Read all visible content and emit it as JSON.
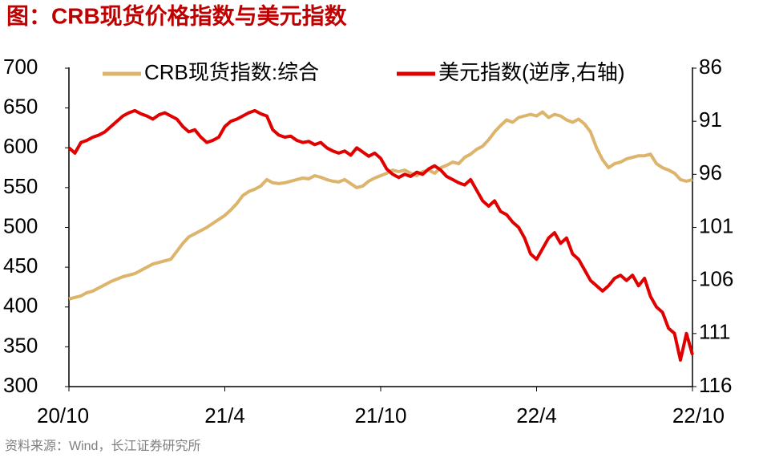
{
  "chart_data": {
    "type": "line",
    "title": "图：CRB现货价格指数与美元指数",
    "source": "资料来源：Wind，长江证券研究所",
    "categories": [
      "20/10",
      null,
      null,
      null,
      null,
      null,
      null,
      null,
      null,
      null,
      null,
      null,
      null,
      null,
      null,
      null,
      null,
      null,
      null,
      null,
      null,
      null,
      null,
      null,
      null,
      null,
      "21/4",
      null,
      null,
      null,
      null,
      null,
      null,
      null,
      null,
      null,
      null,
      null,
      null,
      null,
      null,
      null,
      null,
      null,
      null,
      null,
      null,
      null,
      null,
      null,
      null,
      null,
      "21/10",
      null,
      null,
      null,
      null,
      null,
      null,
      null,
      null,
      null,
      null,
      null,
      null,
      null,
      null,
      null,
      null,
      null,
      null,
      null,
      null,
      null,
      null,
      null,
      null,
      null,
      "22/4",
      null,
      null,
      null,
      null,
      null,
      null,
      null,
      null,
      null,
      null,
      null,
      null,
      null,
      null,
      null,
      null,
      null,
      null,
      null,
      null,
      null,
      null,
      null,
      null,
      null,
      "22/10"
    ],
    "series": [
      {
        "name": "CRB现货指数:综合",
        "color": "#dcb46c",
        "values": [
          410,
          412,
          414,
          418,
          420,
          424,
          428,
          432,
          435,
          438,
          440,
          442,
          446,
          450,
          454,
          456,
          458,
          460,
          470,
          480,
          488,
          492,
          496,
          500,
          505,
          510,
          515,
          522,
          530,
          540,
          545,
          548,
          552,
          560,
          556,
          555,
          556,
          558,
          560,
          562,
          561,
          565,
          563,
          560,
          558,
          557,
          560,
          555,
          550,
          552,
          558,
          562,
          565,
          568,
          572,
          570,
          572,
          568,
          565,
          570,
          572,
          568,
          575,
          578,
          582,
          580,
          588,
          592,
          598,
          602,
          610,
          620,
          628,
          635,
          632,
          638,
          640,
          642,
          640,
          645,
          638,
          642,
          640,
          635,
          632,
          636,
          630,
          620,
          600,
          585,
          575,
          580,
          582,
          586,
          588,
          590,
          590,
          592,
          580,
          575,
          572,
          568,
          560,
          558,
          560
        ]
      },
      {
        "name": "美元指数(逆序,右轴)",
        "color": "#e00000",
        "axis": "y2",
        "values": [
          93.5,
          94.0,
          93.0,
          92.8,
          92.5,
          92.3,
          92.0,
          91.5,
          91.0,
          90.5,
          90.2,
          90.0,
          90.3,
          90.5,
          90.8,
          90.4,
          90.2,
          90.5,
          90.8,
          91.5,
          92.0,
          91.8,
          92.5,
          93.0,
          92.8,
          92.5,
          91.5,
          91.0,
          90.8,
          90.5,
          90.2,
          90.0,
          90.3,
          90.5,
          91.8,
          92.3,
          92.5,
          92.4,
          92.8,
          93.0,
          92.9,
          93.2,
          93.0,
          93.5,
          93.8,
          94.0,
          93.8,
          94.2,
          93.5,
          93.9,
          94.3,
          94.0,
          94.5,
          95.5,
          96.0,
          96.3,
          96.0,
          96.2,
          95.8,
          96.0,
          95.5,
          95.2,
          95.6,
          96.2,
          96.5,
          96.8,
          97.0,
          96.5,
          97.5,
          98.5,
          99.0,
          98.5,
          99.5,
          99.8,
          100.5,
          101.0,
          102.0,
          103.5,
          104.0,
          103.0,
          102.0,
          101.5,
          102.5,
          102.0,
          103.5,
          104.0,
          105.0,
          106.0,
          106.5,
          107.0,
          106.5,
          105.8,
          105.5,
          106.0,
          105.5,
          106.5,
          105.8,
          107.5,
          108.5,
          109.0,
          110.5,
          111.0,
          113.5,
          111.0,
          113.0
        ]
      }
    ],
    "ylim": [
      300,
      700
    ],
    "yticks": [
      300,
      350,
      400,
      450,
      500,
      550,
      600,
      650,
      700
    ],
    "y2lim": [
      86,
      116
    ],
    "y2ticks": [
      86,
      91,
      96,
      101,
      106,
      111,
      116
    ],
    "y2_reversed": true,
    "legend": "top"
  }
}
